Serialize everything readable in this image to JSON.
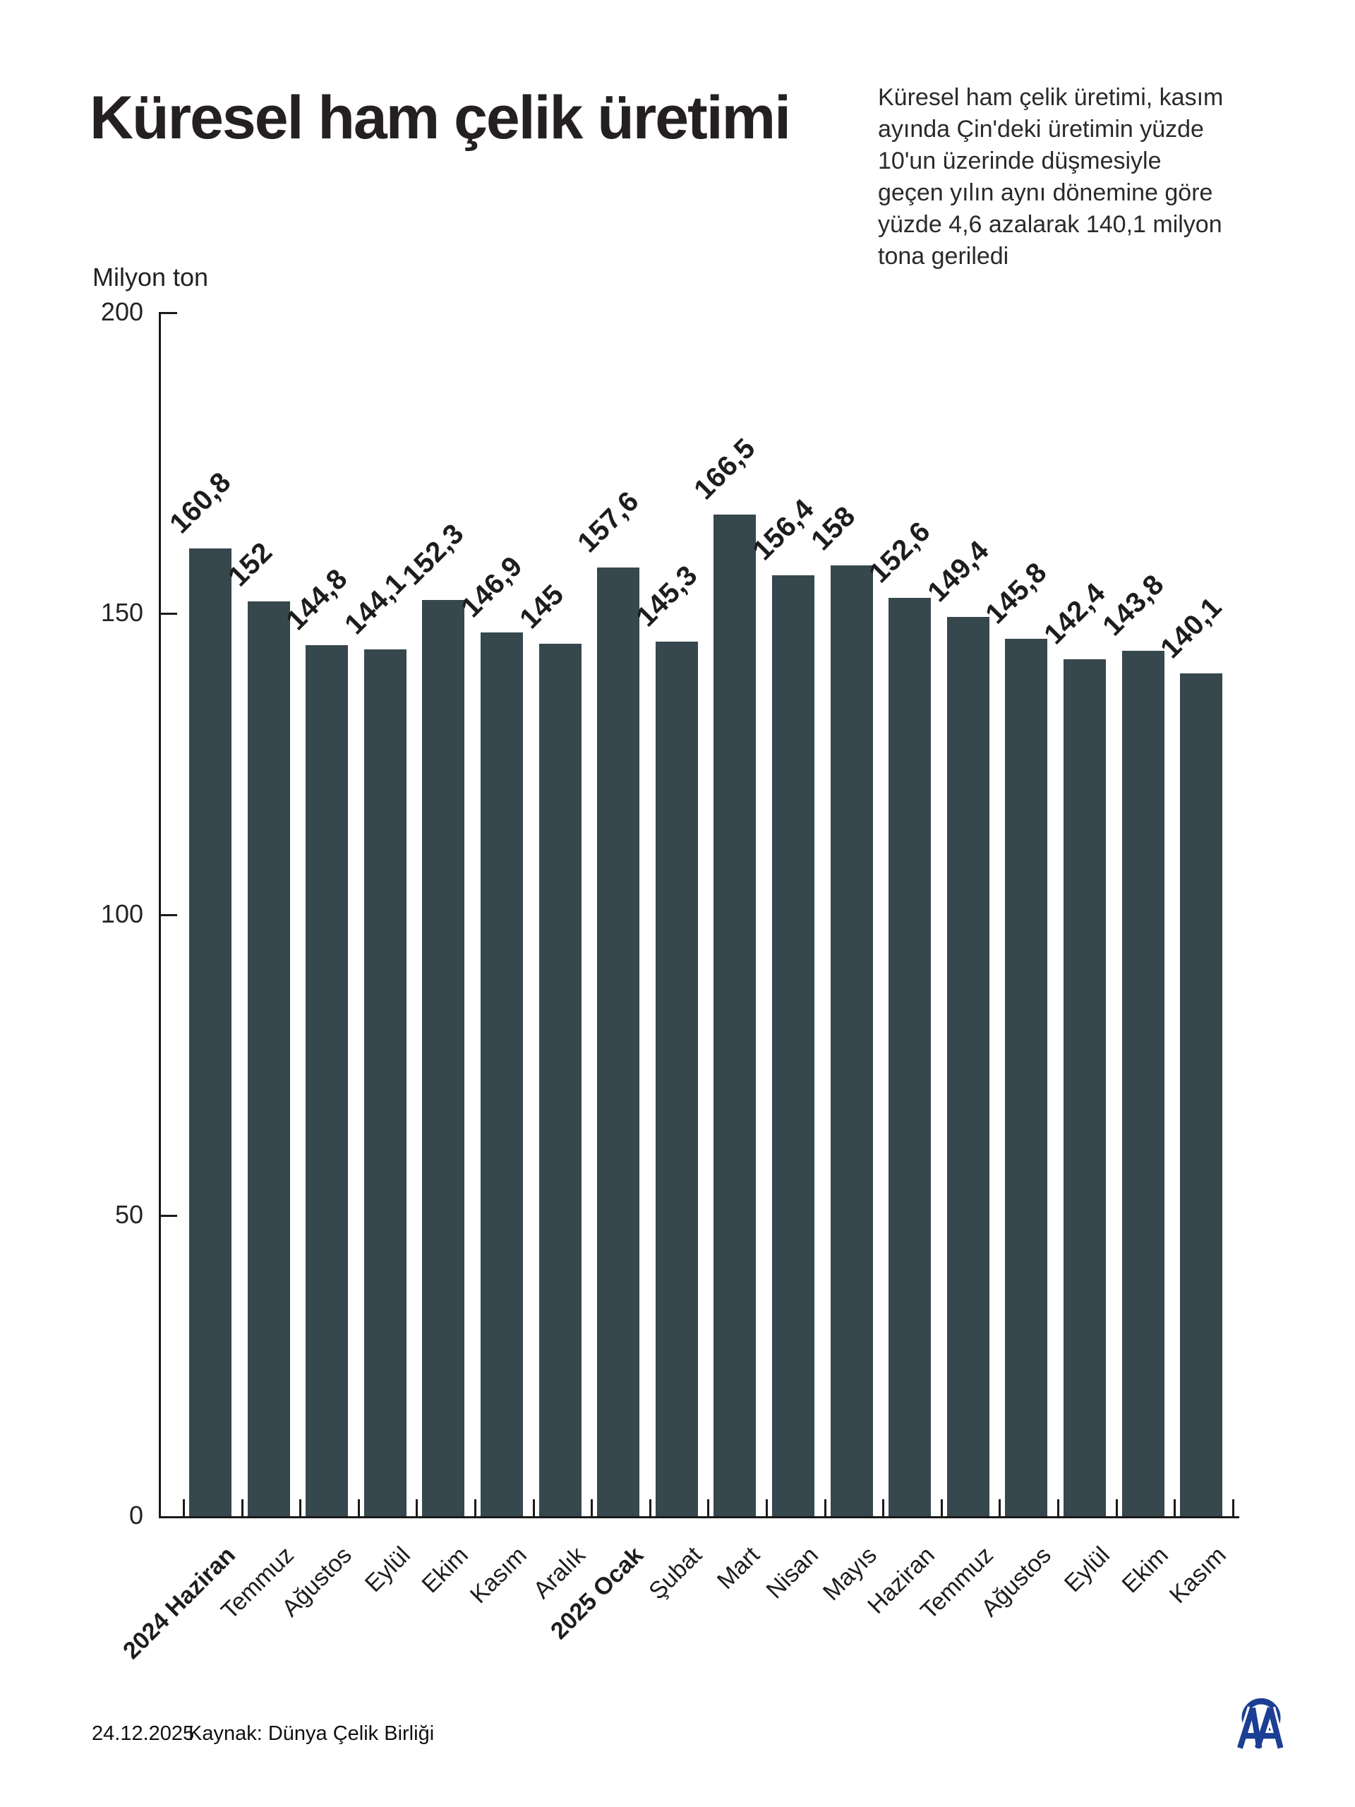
{
  "title": "Küresel ham çelik üretimi",
  "subtitle": "Küresel ham çelik üretimi, kasım\nayında Çin'deki üretimin yüzde\n10'un üzerinde düşmesiyle\ngeçen yılın aynı dönemine göre\nyüzde 4,6 azalarak 140,1 milyon\ntona geriledi",
  "footer": {
    "date": "24.12.2025",
    "source": "Kaynak: Dünya Çelik Birliği"
  },
  "logo": {
    "label": "AA",
    "color": "#1C3E94"
  },
  "chart_data": {
    "type": "bar",
    "title": "Küresel ham çelik üretimi",
    "ylabel": "Milyon ton",
    "xlabel": "",
    "categories": [
      "2024 Haziran",
      "Temmuz",
      "Ağustos",
      "Eylül",
      "Ekim",
      "Kasım",
      "Aralık",
      "2025 Ocak",
      "Şubat",
      "Mart",
      "Nisan",
      "Mayıs",
      "Haziran",
      "Temmuz",
      "Ağustos",
      "Eylül",
      "Ekim",
      "Kasım"
    ],
    "bold_indices": [
      0,
      7
    ],
    "values": [
      160.8,
      152,
      144.8,
      144.1,
      152.3,
      146.9,
      145,
      157.6,
      145.3,
      166.5,
      156.4,
      158,
      152.6,
      149.4,
      145.8,
      142.4,
      143.8,
      140.1
    ],
    "value_labels": [
      "160,8",
      "152",
      "144,8",
      "144,1",
      "152,3",
      "146,9",
      "145",
      "157,6",
      "145,3",
      "166,5",
      "156,4",
      "158",
      "152,6",
      "149,4",
      "145,8",
      "142,4",
      "143,8",
      "140,1"
    ],
    "ylim": [
      0,
      200
    ],
    "yticks": [
      0,
      50,
      100,
      150,
      200
    ],
    "bar_color": "#36474D",
    "grid": false,
    "legend_position": "none"
  }
}
